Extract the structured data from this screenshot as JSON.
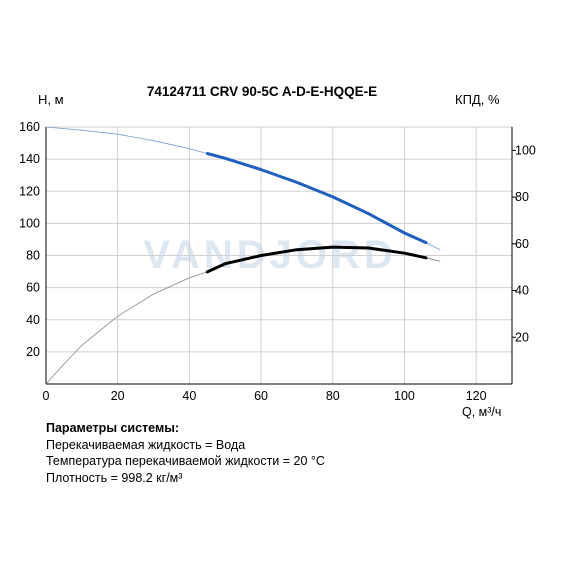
{
  "chart_data": {
    "type": "line",
    "title": "74124711 CRV 90-5C A-D-E-HQQE-E",
    "watermark": "VANDJORD",
    "ylabel": "H, м",
    "y2label": "КПД, %",
    "xlabel": "Q, м³/ч",
    "xlim": [
      0,
      130
    ],
    "ylim": [
      0,
      160
    ],
    "y2lim": [
      0,
      110
    ],
    "x_ticks": [
      0,
      20,
      40,
      60,
      80,
      100,
      120
    ],
    "y_ticks": [
      20,
      40,
      60,
      80,
      100,
      120,
      140,
      160
    ],
    "y2_ticks": [
      20,
      40,
      60,
      80,
      100
    ],
    "grid": true,
    "series": [
      {
        "axis": "left",
        "color": "#1f5fbf",
        "thin_color": "#7a9fd6",
        "operating_range": [
          45,
          106
        ],
        "x": [
          0,
          10,
          20,
          30,
          40,
          45,
          50,
          60,
          70,
          80,
          90,
          100,
          106,
          110
        ],
        "y": [
          160,
          158,
          155.5,
          151.5,
          146.5,
          143.5,
          140.5,
          133.5,
          125.5,
          116.5,
          106,
          94,
          88,
          83.5
        ]
      },
      {
        "axis": "right",
        "color": "#000000",
        "thin_color": "#888888",
        "operating_range": [
          45,
          106
        ],
        "x": [
          0,
          5,
          10,
          20,
          30,
          40,
          45,
          50,
          60,
          70,
          80,
          90,
          100,
          106,
          110
        ],
        "y": [
          0,
          8.5,
          16.5,
          29,
          38.5,
          45.5,
          48,
          51.5,
          55,
          57.5,
          58.6,
          58.2,
          56,
          54,
          52.5
        ]
      }
    ]
  },
  "params": {
    "title": "Параметры системы:",
    "lines": [
      "Перекачиваемая жидкость = Вода",
      "Температура перекачиваемой жидкости = 20 °C",
      "Плотность = 998.2 кг/м³"
    ]
  }
}
